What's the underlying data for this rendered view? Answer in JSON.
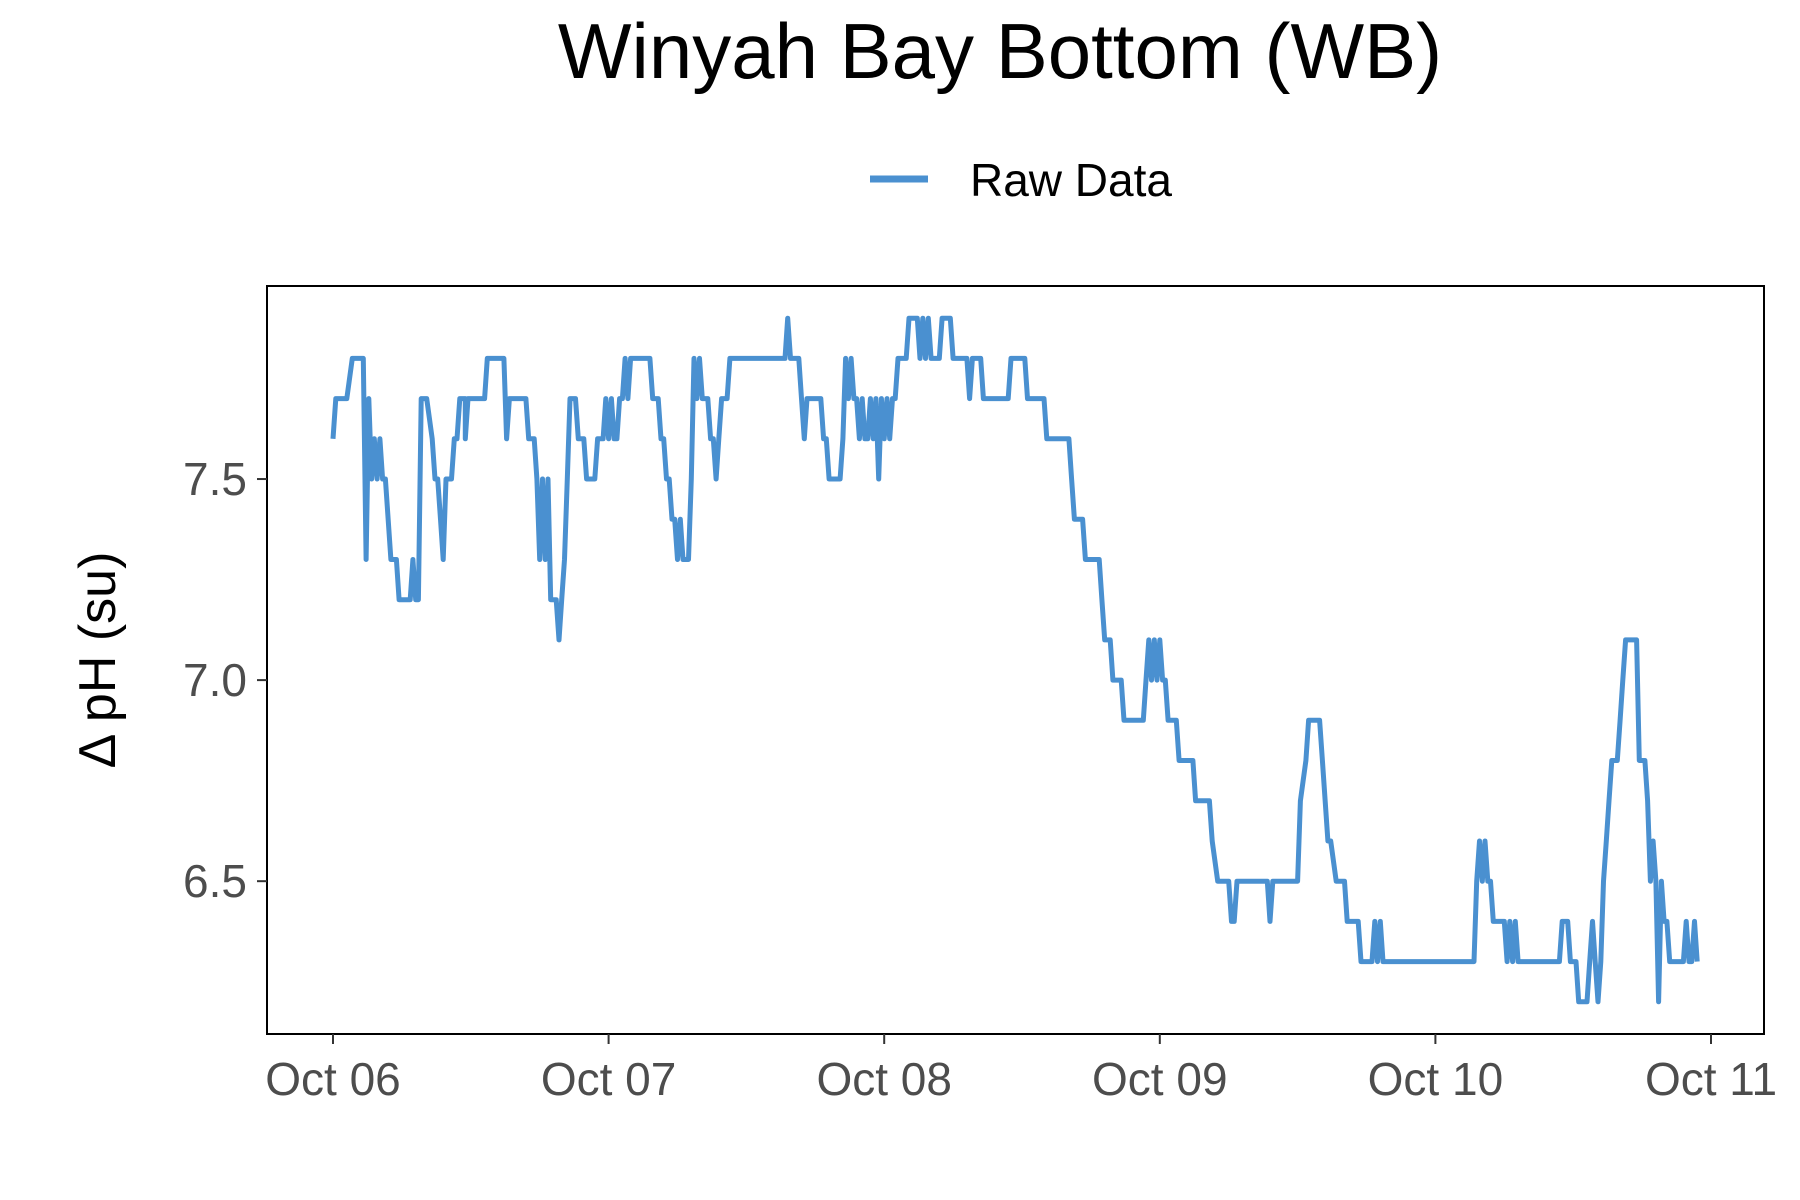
{
  "chart_data": {
    "type": "line",
    "title": "Winyah Bay Bottom (WB)",
    "ylabel": "Δ pH (su)",
    "xlabel": "",
    "x_ticks": [
      "Oct 06",
      "Oct 07",
      "Oct 08",
      "Oct 09",
      "Oct 10",
      "Oct 11"
    ],
    "y_ticks": [
      "6.5",
      "7.0",
      "7.5"
    ],
    "xlim": [
      "Oct 06 00:00",
      "Oct 11 00:00"
    ],
    "ylim": [
      6.12,
      7.98
    ],
    "grid": false,
    "legend_position": "top",
    "series": [
      {
        "name": "Raw Data",
        "color": "#4a90d0",
        "x_unit": "days since Oct 06 00:00",
        "points": [
          [
            0.0,
            7.6
          ],
          [
            0.01,
            7.7
          ],
          [
            0.05,
            7.7
          ],
          [
            0.07,
            7.8
          ],
          [
            0.11,
            7.8
          ],
          [
            0.12,
            7.3
          ],
          [
            0.13,
            7.7
          ],
          [
            0.14,
            7.5
          ],
          [
            0.15,
            7.6
          ],
          [
            0.16,
            7.5
          ],
          [
            0.17,
            7.6
          ],
          [
            0.18,
            7.5
          ],
          [
            0.19,
            7.5
          ],
          [
            0.21,
            7.3
          ],
          [
            0.23,
            7.3
          ],
          [
            0.24,
            7.2
          ],
          [
            0.28,
            7.2
          ],
          [
            0.29,
            7.3
          ],
          [
            0.3,
            7.2
          ],
          [
            0.31,
            7.2
          ],
          [
            0.32,
            7.7
          ],
          [
            0.34,
            7.7
          ],
          [
            0.36,
            7.6
          ],
          [
            0.37,
            7.5
          ],
          [
            0.38,
            7.5
          ],
          [
            0.39,
            7.4
          ],
          [
            0.4,
            7.3
          ],
          [
            0.41,
            7.5
          ],
          [
            0.43,
            7.5
          ],
          [
            0.44,
            7.6
          ],
          [
            0.45,
            7.6
          ],
          [
            0.46,
            7.7
          ],
          [
            0.48,
            7.7
          ],
          [
            0.48,
            7.6
          ],
          [
            0.49,
            7.7
          ],
          [
            0.55,
            7.7
          ],
          [
            0.56,
            7.8
          ],
          [
            0.62,
            7.8
          ],
          [
            0.63,
            7.6
          ],
          [
            0.64,
            7.7
          ],
          [
            0.7,
            7.7
          ],
          [
            0.71,
            7.6
          ],
          [
            0.73,
            7.6
          ],
          [
            0.74,
            7.5
          ],
          [
            0.75,
            7.3
          ],
          [
            0.76,
            7.5
          ],
          [
            0.77,
            7.3
          ],
          [
            0.78,
            7.5
          ],
          [
            0.79,
            7.2
          ],
          [
            0.81,
            7.2
          ],
          [
            0.82,
            7.1
          ],
          [
            0.83,
            7.2
          ],
          [
            0.84,
            7.3
          ],
          [
            0.85,
            7.5
          ],
          [
            0.86,
            7.7
          ],
          [
            0.88,
            7.7
          ],
          [
            0.89,
            7.6
          ],
          [
            0.9,
            7.6
          ],
          [
            0.91,
            7.6
          ],
          [
            0.92,
            7.5
          ],
          [
            0.95,
            7.5
          ],
          [
            0.96,
            7.6
          ],
          [
            0.98,
            7.6
          ],
          [
            0.99,
            7.7
          ],
          [
            1.0,
            7.6
          ],
          [
            1.01,
            7.7
          ],
          [
            1.02,
            7.6
          ],
          [
            1.03,
            7.6
          ],
          [
            1.04,
            7.7
          ],
          [
            1.05,
            7.7
          ],
          [
            1.06,
            7.8
          ],
          [
            1.07,
            7.7
          ],
          [
            1.08,
            7.8
          ],
          [
            1.15,
            7.8
          ],
          [
            1.16,
            7.7
          ],
          [
            1.18,
            7.7
          ],
          [
            1.19,
            7.6
          ],
          [
            1.2,
            7.6
          ],
          [
            1.21,
            7.5
          ],
          [
            1.22,
            7.5
          ],
          [
            1.23,
            7.4
          ],
          [
            1.24,
            7.4
          ],
          [
            1.25,
            7.3
          ],
          [
            1.26,
            7.4
          ],
          [
            1.27,
            7.3
          ],
          [
            1.29,
            7.3
          ],
          [
            1.3,
            7.5
          ],
          [
            1.31,
            7.8
          ],
          [
            1.32,
            7.7
          ],
          [
            1.33,
            7.8
          ],
          [
            1.34,
            7.7
          ],
          [
            1.36,
            7.7
          ],
          [
            1.37,
            7.6
          ],
          [
            1.38,
            7.6
          ],
          [
            1.39,
            7.5
          ],
          [
            1.4,
            7.6
          ],
          [
            1.41,
            7.7
          ],
          [
            1.43,
            7.7
          ],
          [
            1.44,
            7.8
          ],
          [
            1.64,
            7.8
          ],
          [
            1.65,
            7.9
          ],
          [
            1.66,
            7.8
          ],
          [
            1.69,
            7.8
          ],
          [
            1.7,
            7.7
          ],
          [
            1.71,
            7.6
          ],
          [
            1.72,
            7.7
          ],
          [
            1.77,
            7.7
          ],
          [
            1.78,
            7.6
          ],
          [
            1.79,
            7.6
          ],
          [
            1.8,
            7.5
          ],
          [
            1.84,
            7.5
          ],
          [
            1.85,
            7.6
          ],
          [
            1.86,
            7.8
          ],
          [
            1.87,
            7.7
          ],
          [
            1.88,
            7.8
          ],
          [
            1.89,
            7.7
          ],
          [
            1.9,
            7.7
          ],
          [
            1.91,
            7.6
          ],
          [
            1.92,
            7.7
          ],
          [
            1.93,
            7.6
          ],
          [
            1.94,
            7.6
          ],
          [
            1.95,
            7.7
          ],
          [
            1.96,
            7.6
          ],
          [
            1.97,
            7.7
          ],
          [
            1.98,
            7.5
          ],
          [
            1.99,
            7.7
          ],
          [
            2.0,
            7.6
          ],
          [
            2.01,
            7.7
          ],
          [
            2.02,
            7.6
          ],
          [
            2.03,
            7.7
          ],
          [
            2.04,
            7.7
          ],
          [
            2.05,
            7.8
          ],
          [
            2.08,
            7.8
          ],
          [
            2.09,
            7.9
          ],
          [
            2.12,
            7.9
          ],
          [
            2.13,
            7.8
          ],
          [
            2.14,
            7.9
          ],
          [
            2.15,
            7.8
          ],
          [
            2.16,
            7.9
          ],
          [
            2.17,
            7.8
          ],
          [
            2.2,
            7.8
          ],
          [
            2.21,
            7.9
          ],
          [
            2.24,
            7.9
          ],
          [
            2.25,
            7.8
          ],
          [
            2.3,
            7.8
          ],
          [
            2.31,
            7.7
          ],
          [
            2.32,
            7.8
          ],
          [
            2.35,
            7.8
          ],
          [
            2.36,
            7.7
          ],
          [
            2.45,
            7.7
          ],
          [
            2.46,
            7.8
          ],
          [
            2.51,
            7.8
          ],
          [
            2.52,
            7.7
          ],
          [
            2.58,
            7.7
          ],
          [
            2.59,
            7.6
          ],
          [
            2.67,
            7.6
          ],
          [
            2.68,
            7.5
          ],
          [
            2.69,
            7.4
          ],
          [
            2.72,
            7.4
          ],
          [
            2.73,
            7.3
          ],
          [
            2.78,
            7.3
          ],
          [
            2.79,
            7.2
          ],
          [
            2.8,
            7.1
          ],
          [
            2.82,
            7.1
          ],
          [
            2.83,
            7.0
          ],
          [
            2.86,
            7.0
          ],
          [
            2.87,
            6.9
          ],
          [
            2.94,
            6.9
          ],
          [
            2.95,
            7.0
          ],
          [
            2.96,
            7.1
          ],
          [
            2.97,
            7.0
          ],
          [
            2.98,
            7.1
          ],
          [
            2.99,
            7.0
          ],
          [
            3.0,
            7.1
          ],
          [
            3.01,
            7.0
          ],
          [
            3.02,
            7.0
          ],
          [
            3.03,
            6.9
          ],
          [
            3.06,
            6.9
          ],
          [
            3.07,
            6.8
          ],
          [
            3.12,
            6.8
          ],
          [
            3.13,
            6.7
          ],
          [
            3.18,
            6.7
          ],
          [
            3.19,
            6.6
          ],
          [
            3.21,
            6.5
          ],
          [
            3.25,
            6.5
          ],
          [
            3.26,
            6.4
          ],
          [
            3.27,
            6.4
          ],
          [
            3.28,
            6.5
          ],
          [
            3.39,
            6.5
          ],
          [
            3.4,
            6.4
          ],
          [
            3.41,
            6.5
          ],
          [
            3.5,
            6.5
          ],
          [
            3.51,
            6.7
          ],
          [
            3.53,
            6.8
          ],
          [
            3.54,
            6.9
          ],
          [
            3.58,
            6.9
          ],
          [
            3.59,
            6.8
          ],
          [
            3.61,
            6.6
          ],
          [
            3.62,
            6.6
          ],
          [
            3.64,
            6.5
          ],
          [
            3.67,
            6.5
          ],
          [
            3.68,
            6.4
          ],
          [
            3.72,
            6.4
          ],
          [
            3.73,
            6.3
          ],
          [
            3.77,
            6.3
          ],
          [
            3.78,
            6.4
          ],
          [
            3.79,
            6.3
          ],
          [
            3.8,
            6.4
          ],
          [
            3.81,
            6.3
          ],
          [
            4.14,
            6.3
          ],
          [
            4.15,
            6.5
          ],
          [
            4.16,
            6.6
          ],
          [
            4.17,
            6.5
          ],
          [
            4.18,
            6.6
          ],
          [
            4.19,
            6.5
          ],
          [
            4.2,
            6.5
          ],
          [
            4.21,
            6.4
          ],
          [
            4.25,
            6.4
          ],
          [
            4.26,
            6.3
          ],
          [
            4.27,
            6.4
          ],
          [
            4.28,
            6.3
          ],
          [
            4.29,
            6.4
          ],
          [
            4.3,
            6.3
          ],
          [
            4.45,
            6.3
          ],
          [
            4.46,
            6.4
          ],
          [
            4.48,
            6.4
          ],
          [
            4.49,
            6.3
          ],
          [
            4.51,
            6.3
          ],
          [
            4.52,
            6.2
          ],
          [
            4.55,
            6.2
          ],
          [
            4.56,
            6.3
          ],
          [
            4.57,
            6.4
          ],
          [
            4.58,
            6.3
          ],
          [
            4.59,
            6.2
          ],
          [
            4.6,
            6.3
          ],
          [
            4.61,
            6.5
          ],
          [
            4.62,
            6.6
          ],
          [
            4.63,
            6.7
          ],
          [
            4.64,
            6.8
          ],
          [
            4.66,
            6.8
          ],
          [
            4.67,
            6.9
          ],
          [
            4.68,
            7.0
          ],
          [
            4.69,
            7.1
          ],
          [
            4.73,
            7.1
          ],
          [
            4.74,
            6.8
          ],
          [
            4.76,
            6.8
          ],
          [
            4.77,
            6.7
          ],
          [
            4.78,
            6.5
          ],
          [
            4.79,
            6.6
          ],
          [
            4.8,
            6.5
          ],
          [
            4.81,
            6.2
          ],
          [
            4.82,
            6.5
          ],
          [
            4.83,
            6.4
          ],
          [
            4.84,
            6.4
          ],
          [
            4.85,
            6.3
          ],
          [
            4.9,
            6.3
          ],
          [
            4.91,
            6.4
          ],
          [
            4.92,
            6.3
          ],
          [
            4.93,
            6.3
          ],
          [
            4.94,
            6.4
          ],
          [
            4.95,
            6.3
          ]
        ]
      }
    ]
  }
}
